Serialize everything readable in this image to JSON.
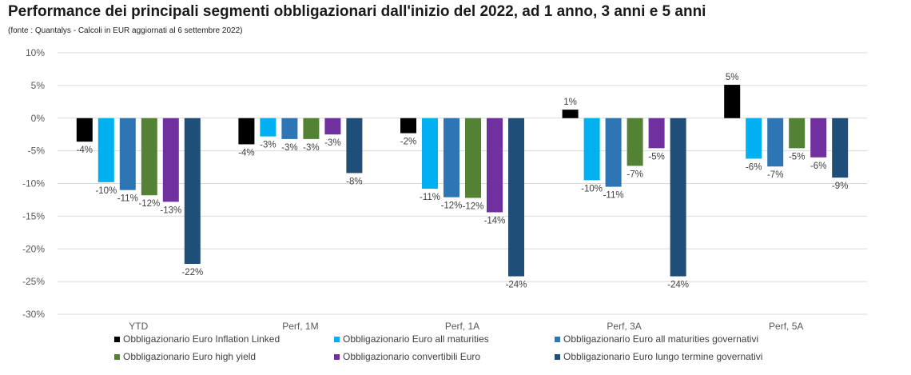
{
  "title": "Performance dei principali segmenti obbligazionari dall'inizio del 2022, ad 1 anno, 3 anni e 5 anni",
  "subtitle": "(fonte : Quantalys - Calcoli in EUR aggiornati al 6 settembre 2022)",
  "chart_data": {
    "type": "bar",
    "categories": [
      "YTD",
      "Perf, 1M",
      "Perf, 1A",
      "Perf, 3A",
      "Perf, 5A"
    ],
    "ylim": [
      -30,
      10
    ],
    "yticks": [
      10,
      5,
      0,
      -5,
      -10,
      -15,
      -20,
      -25,
      -30
    ],
    "ytick_labels": [
      "10%",
      "5%",
      "0%",
      "-5%",
      "-10%",
      "-15%",
      "-20%",
      "-25%",
      "-30%"
    ],
    "grid": true,
    "legend_position": "bottom",
    "series": [
      {
        "name": "Obbligazionario Euro Inflation Linked",
        "color": "#000000",
        "values": [
          -3.6,
          -4.0,
          -2.3,
          1.3,
          5.1
        ],
        "labels": [
          "-4%",
          "-4%",
          "-2%",
          "1%",
          "5%"
        ]
      },
      {
        "name": "Obbligazionario Euro all maturities",
        "color": "#00B0F0",
        "values": [
          -9.8,
          -2.8,
          -10.8,
          -9.5,
          -6.2
        ],
        "labels": [
          "-10%",
          "-3%",
          "-11%",
          "-10%",
          "-6%"
        ]
      },
      {
        "name": "Obbligazionario Euro all maturities governativi",
        "color": "#2E75B6",
        "values": [
          -11.0,
          -3.2,
          -12.1,
          -10.5,
          -7.4
        ],
        "labels": [
          "-11%",
          "-3%",
          "-12%",
          "-11%",
          "-7%"
        ]
      },
      {
        "name": "Obbligazionario Euro high yield",
        "color": "#548235",
        "values": [
          -11.8,
          -3.2,
          -12.2,
          -7.3,
          -4.6
        ],
        "labels": [
          "-12%",
          "-3%",
          "-12%",
          "-7%",
          "-5%"
        ]
      },
      {
        "name": "Obbligazionario convertibili Euro",
        "color": "#7030A0",
        "values": [
          -12.8,
          -2.5,
          -14.4,
          -4.6,
          -6.0
        ],
        "labels": [
          "-13%",
          "-3%",
          "-14%",
          "-5%",
          "-6%"
        ]
      },
      {
        "name": "Obbligazionario Euro lungo termine governativi",
        "color": "#1F4E79",
        "values": [
          -22.3,
          -8.4,
          -24.2,
          -24.2,
          -9.1
        ],
        "labels": [
          "-22%",
          "-8%",
          "-24%",
          "-24%",
          "-9%"
        ]
      }
    ]
  }
}
